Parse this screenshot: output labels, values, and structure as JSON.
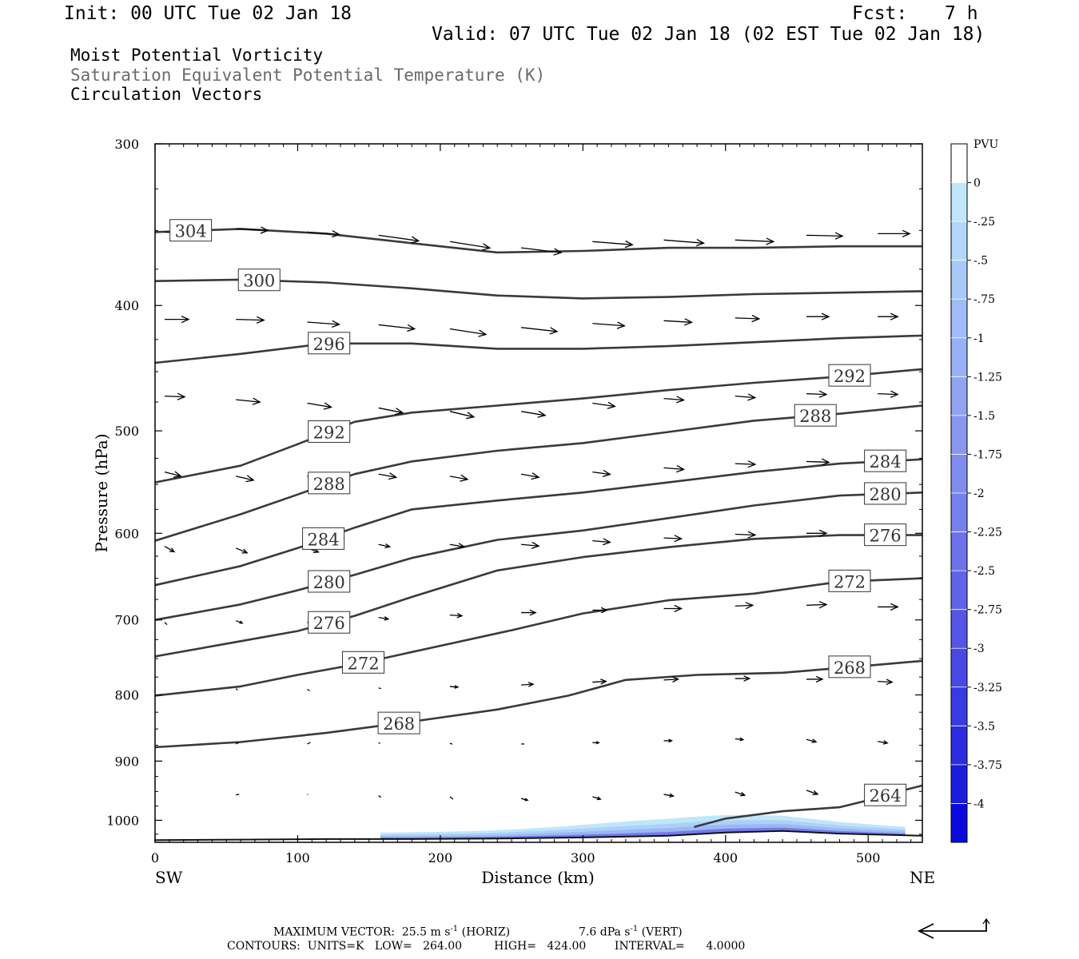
{
  "header": {
    "init": "Init: 00 UTC Tue 02 Jan 18",
    "fcst_label": "Fcst:",
    "fcst_value": "7 h",
    "valid": "Valid: 07 UTC Tue 02 Jan 18 (02 EST Tue 02 Jan 18)"
  },
  "fields": {
    "field1": "Moist Potential Vorticity",
    "field2": "Saturation Equivalent Potential Temperature (K)",
    "field3": "Circulation Vectors"
  },
  "footer": {
    "line1_a": "MAXIMUM VECTOR:  25.5 m s",
    "line1_exp": "-1",
    "line1_b": " (HORIZ)",
    "line1_c": "7.6 dPa s",
    "line1_exp2": "-1",
    "line1_d": " (VERT)",
    "line2": "CONTOURS:  UNITS=K   LOW=   264.00         HIGH=   424.00        INTERVAL=      4.0000"
  },
  "colors": {
    "contour": "#3a3a3a",
    "frame": "#000000",
    "pv_light": "#bfe6fa",
    "pv_mid": "#9ab8f4",
    "pv_dark": "#6a6ae8"
  },
  "chart_data": {
    "type": "cross-section",
    "xlabel": "Distance (km)",
    "ylabel": "Pressure (hPa)",
    "x_end_left": "SW",
    "x_end_right": "NE",
    "xlim": [
      0,
      538
    ],
    "ylim": [
      1040,
      300
    ],
    "y_scale": "log",
    "x_ticks": [
      0,
      100,
      200,
      300,
      400,
      500
    ],
    "y_ticks": [
      300,
      400,
      500,
      600,
      700,
      800,
      900,
      1000
    ],
    "colorbar": {
      "unit": "PVU",
      "levels": [
        "0",
        "-.25",
        "-.5",
        "-.75",
        "-1",
        "-1.25",
        "-1.5",
        "-1.75",
        "-2",
        "-2.25",
        "-2.5",
        "-2.75",
        "-3",
        "-3.25",
        "-3.5",
        "-3.75",
        "-4"
      ],
      "colors": [
        "#ffffff",
        "#bfe6fa",
        "#b2d6f9",
        "#a8caf7",
        "#9fbcf6",
        "#98b0f4",
        "#90a4f2",
        "#8898f0",
        "#7f8cee",
        "#7680ec",
        "#6b72ea",
        "#6064e8",
        "#5456e6",
        "#4848e4",
        "#3a3ae2",
        "#2c2ce0",
        "#1c1cde",
        "#0a0adc"
      ]
    },
    "theta_e_contours": [
      {
        "level": 304,
        "label": "304",
        "label_at": 25,
        "points": [
          [
            0,
            351
          ],
          [
            60,
            349
          ],
          [
            120,
            352
          ],
          [
            180,
            358
          ],
          [
            240,
            364
          ],
          [
            300,
            363
          ],
          [
            360,
            361
          ],
          [
            420,
            361
          ],
          [
            480,
            360
          ],
          [
            538,
            360
          ]
        ]
      },
      {
        "level": 300,
        "label": "300",
        "label_at": 73,
        "points": [
          [
            0,
            383
          ],
          [
            60,
            382
          ],
          [
            120,
            384
          ],
          [
            180,
            388
          ],
          [
            240,
            393
          ],
          [
            300,
            395
          ],
          [
            360,
            394
          ],
          [
            420,
            392
          ],
          [
            480,
            391
          ],
          [
            538,
            390
          ]
        ]
      },
      {
        "level": 296,
        "label": "296",
        "label_at": 122,
        "points": [
          [
            0,
            443
          ],
          [
            60,
            436
          ],
          [
            120,
            428
          ],
          [
            180,
            428
          ],
          [
            240,
            432
          ],
          [
            300,
            432
          ],
          [
            360,
            430
          ],
          [
            420,
            427
          ],
          [
            480,
            424
          ],
          [
            538,
            422
          ]
        ]
      },
      {
        "level": 292,
        "label": "292",
        "label_at": 122,
        "label2": "292",
        "label2_at": 487,
        "points": [
          [
            0,
            548
          ],
          [
            60,
            532
          ],
          [
            100,
            512
          ],
          [
            140,
            492
          ],
          [
            180,
            484
          ],
          [
            240,
            478
          ],
          [
            300,
            472
          ],
          [
            360,
            465
          ],
          [
            420,
            459
          ],
          [
            480,
            454
          ],
          [
            538,
            448
          ]
        ]
      },
      {
        "level": 288,
        "label": "288",
        "label_at": 122,
        "label2": "288",
        "label2_at": 463,
        "points": [
          [
            0,
            608
          ],
          [
            60,
            580
          ],
          [
            100,
            560
          ],
          [
            140,
            540
          ],
          [
            180,
            528
          ],
          [
            240,
            518
          ],
          [
            300,
            511
          ],
          [
            360,
            501
          ],
          [
            420,
            491
          ],
          [
            480,
            485
          ],
          [
            538,
            478
          ]
        ]
      },
      {
        "level": 284,
        "label": "284",
        "label_at": 118,
        "label2": "284",
        "label2_at": 512,
        "points": [
          [
            0,
            658
          ],
          [
            60,
            636
          ],
          [
            100,
            616
          ],
          [
            140,
            594
          ],
          [
            180,
            575
          ],
          [
            240,
            566
          ],
          [
            300,
            558
          ],
          [
            360,
            548
          ],
          [
            420,
            538
          ],
          [
            480,
            530
          ],
          [
            538,
            526
          ]
        ]
      },
      {
        "level": 280,
        "label": "280",
        "label_at": 122,
        "label2": "280",
        "label2_at": 512,
        "points": [
          [
            0,
            700
          ],
          [
            60,
            681
          ],
          [
            100,
            664
          ],
          [
            140,
            646
          ],
          [
            180,
            627
          ],
          [
            240,
            607
          ],
          [
            300,
            597
          ],
          [
            360,
            584
          ],
          [
            420,
            571
          ],
          [
            480,
            561
          ],
          [
            538,
            558
          ]
        ]
      },
      {
        "level": 276,
        "label": "276",
        "label_at": 122,
        "label2": "276",
        "label2_at": 512,
        "points": [
          [
            0,
            747
          ],
          [
            60,
            727
          ],
          [
            100,
            714
          ],
          [
            140,
            695
          ],
          [
            180,
            672
          ],
          [
            240,
            641
          ],
          [
            300,
            626
          ],
          [
            360,
            615
          ],
          [
            420,
            606
          ],
          [
            480,
            602
          ],
          [
            538,
            602
          ]
        ]
      },
      {
        "level": 272,
        "label": "272",
        "label_at": 146,
        "label2": "272",
        "label2_at": 487,
        "points": [
          [
            0,
            801
          ],
          [
            60,
            788
          ],
          [
            100,
            772
          ],
          [
            140,
            758
          ],
          [
            200,
            733
          ],
          [
            250,
            713
          ],
          [
            300,
            692
          ],
          [
            360,
            676
          ],
          [
            420,
            668
          ],
          [
            480,
            654
          ],
          [
            538,
            650
          ]
        ]
      },
      {
        "level": 268,
        "label": "268",
        "label_at": 171,
        "label2": "268",
        "label2_at": 487,
        "points": [
          [
            0,
            878
          ],
          [
            60,
            870
          ],
          [
            120,
            856
          ],
          [
            180,
            839
          ],
          [
            240,
            821
          ],
          [
            290,
            801
          ],
          [
            330,
            779
          ],
          [
            380,
            772
          ],
          [
            440,
            769
          ],
          [
            490,
            761
          ],
          [
            538,
            753
          ]
        ]
      },
      {
        "level": 264,
        "label": "264",
        "label_at": 512,
        "points": [
          [
            378,
            1012
          ],
          [
            400,
            997
          ],
          [
            440,
            984
          ],
          [
            480,
            977
          ],
          [
            500,
            965
          ],
          [
            520,
            951
          ],
          [
            538,
            940
          ]
        ]
      }
    ],
    "surface_line": [
      [
        0,
        1036
      ],
      [
        60,
        1035
      ],
      [
        120,
        1034
      ],
      [
        180,
        1034
      ],
      [
        240,
        1033
      ],
      [
        300,
        1031
      ],
      [
        360,
        1028
      ],
      [
        400,
        1022
      ],
      [
        440,
        1019
      ],
      [
        480,
        1024
      ],
      [
        538,
        1028
      ]
    ],
    "pv_shading": {
      "x_start": 158,
      "x_end": 526,
      "min_pv": -2.5
    },
    "circulation_vectors": [
      [
        0,
        351,
        30,
        -2
      ],
      [
        50,
        349,
        40,
        -2
      ],
      [
        100,
        351,
        40,
        -3
      ],
      [
        150,
        353,
        50,
        -7
      ],
      [
        200,
        357,
        50,
        -8
      ],
      [
        250,
        361,
        50,
        -6
      ],
      [
        300,
        357,
        50,
        -4
      ],
      [
        350,
        356,
        50,
        -4
      ],
      [
        400,
        356,
        48,
        -2
      ],
      [
        450,
        353,
        45,
        -1
      ],
      [
        500,
        352,
        40,
        0
      ],
      [
        0,
        410,
        30,
        0
      ],
      [
        50,
        410,
        35,
        -1
      ],
      [
        100,
        412,
        40,
        -3
      ],
      [
        150,
        414,
        45,
        -5
      ],
      [
        200,
        417,
        45,
        -7
      ],
      [
        250,
        416,
        45,
        -5
      ],
      [
        300,
        413,
        40,
        -3
      ],
      [
        350,
        411,
        35,
        -2
      ],
      [
        400,
        409,
        30,
        -1
      ],
      [
        450,
        408,
        28,
        0
      ],
      [
        500,
        408,
        25,
        0
      ],
      [
        0,
        470,
        25,
        -1
      ],
      [
        50,
        473,
        30,
        -3
      ],
      [
        100,
        476,
        30,
        -5
      ],
      [
        150,
        480,
        30,
        -6
      ],
      [
        200,
        483,
        30,
        -7
      ],
      [
        250,
        483,
        30,
        -5
      ],
      [
        300,
        476,
        28,
        -4
      ],
      [
        350,
        472,
        25,
        -2
      ],
      [
        400,
        470,
        25,
        -2
      ],
      [
        450,
        468,
        25,
        -1
      ],
      [
        500,
        468,
        25,
        -1
      ],
      [
        0,
        538,
        20,
        -5
      ],
      [
        50,
        542,
        22,
        -5
      ],
      [
        100,
        542,
        22,
        -5
      ],
      [
        150,
        540,
        22,
        -4
      ],
      [
        200,
        542,
        22,
        -4
      ],
      [
        250,
        540,
        22,
        -4
      ],
      [
        300,
        538,
        22,
        -3
      ],
      [
        350,
        534,
        25,
        -2
      ],
      [
        400,
        530,
        25,
        -1
      ],
      [
        450,
        528,
        28,
        -1
      ],
      [
        500,
        530,
        28,
        0
      ],
      [
        0,
        614,
        12,
        -7
      ],
      [
        50,
        616,
        14,
        -6
      ],
      [
        100,
        616,
        14,
        -5
      ],
      [
        150,
        612,
        14,
        -3
      ],
      [
        200,
        612,
        18,
        -3
      ],
      [
        250,
        612,
        22,
        -2
      ],
      [
        300,
        608,
        22,
        -2
      ],
      [
        350,
        605,
        22,
        -1
      ],
      [
        400,
        601,
        25,
        -1
      ],
      [
        450,
        600,
        25,
        0
      ],
      [
        500,
        600,
        25,
        0
      ],
      [
        0,
        703,
        3,
        -3
      ],
      [
        50,
        701,
        8,
        -3
      ],
      [
        100,
        703,
        10,
        -4
      ],
      [
        150,
        697,
        12,
        -2
      ],
      [
        200,
        694,
        15,
        -1
      ],
      [
        250,
        691,
        18,
        0
      ],
      [
        300,
        688,
        18,
        0
      ],
      [
        350,
        686,
        22,
        0
      ],
      [
        400,
        683,
        22,
        1
      ],
      [
        450,
        682,
        25,
        1
      ],
      [
        500,
        684,
        25,
        0
      ],
      [
        50,
        791,
        2,
        -2
      ],
      [
        100,
        792,
        3,
        -2
      ],
      [
        150,
        790,
        3,
        -1
      ],
      [
        200,
        788,
        10,
        -1
      ],
      [
        250,
        786,
        15,
        1
      ],
      [
        300,
        782,
        17,
        1
      ],
      [
        350,
        779,
        18,
        1
      ],
      [
        400,
        777,
        18,
        0
      ],
      [
        450,
        778,
        20,
        0
      ],
      [
        500,
        781,
        18,
        -1
      ],
      [
        50,
        873,
        4,
        2
      ],
      [
        100,
        873,
        4,
        2
      ],
      [
        150,
        871,
        2,
        -1
      ],
      [
        200,
        872,
        3,
        -1
      ],
      [
        250,
        873,
        4,
        0
      ],
      [
        300,
        871,
        8,
        0
      ],
      [
        350,
        868,
        10,
        0
      ],
      [
        400,
        865,
        10,
        -1
      ],
      [
        450,
        866,
        12,
        -3
      ],
      [
        500,
        869,
        12,
        -2
      ],
      [
        50,
        956,
        4,
        1
      ],
      [
        100,
        955,
        1,
        0
      ],
      [
        150,
        957,
        3,
        -2
      ],
      [
        200,
        959,
        4,
        -3
      ],
      [
        250,
        962,
        8,
        -2
      ],
      [
        300,
        959,
        10,
        -3
      ],
      [
        350,
        955,
        12,
        -2
      ],
      [
        400,
        951,
        12,
        -4
      ],
      [
        450,
        948,
        14,
        -5
      ],
      [
        500,
        947,
        15,
        0
      ]
    ],
    "reference_vector": {
      "horiz": "25.5 m s-1",
      "vert": "7.6 dPa s-1"
    }
  }
}
